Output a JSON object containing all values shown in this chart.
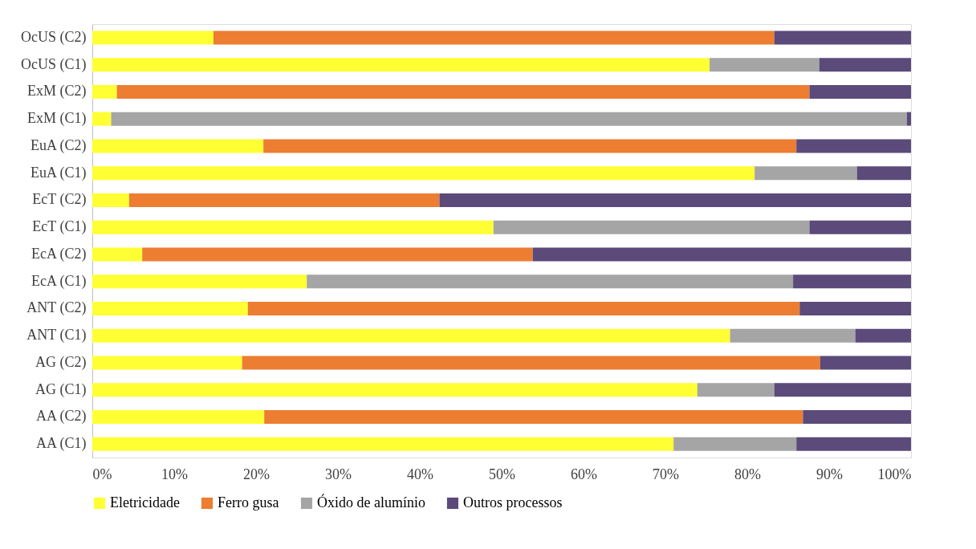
{
  "chart_data": {
    "type": "bar",
    "orientation": "horizontal",
    "stacked": true,
    "categories": [
      "OcUS (C2)",
      "OcUS (C1)",
      "ExM (C2)",
      "ExM (C1)",
      "EuA (C2)",
      "EuA (C1)",
      "EcT (C2)",
      "EcT (C1)",
      "EcA (C2)",
      "EcA (C1)",
      "ANT (C2)",
      "ANT (C1)",
      "AG (C2)",
      "AG (C1)",
      "AA (C2)",
      "AA (C1)"
    ],
    "series": [
      {
        "name": "Eletricidade",
        "color": "#ffff33",
        "values": [
          14.8,
          75.4,
          3.0,
          2.3,
          20.9,
          80.9,
          4.5,
          49.0,
          6.1,
          26.2,
          19.0,
          77.9,
          18.3,
          73.9,
          21.0,
          71.0
        ]
      },
      {
        "name": "Ferro gusa",
        "color": "#ed7d31",
        "values": [
          68.5,
          null,
          84.6,
          null,
          65.1,
          null,
          37.9,
          null,
          47.7,
          null,
          67.4,
          null,
          70.6,
          null,
          65.8,
          null
        ]
      },
      {
        "name": "Óxido de alumínio",
        "color": "#a5a5a5",
        "values": [
          null,
          13.4,
          null,
          97.2,
          null,
          12.5,
          null,
          38.6,
          null,
          59.4,
          null,
          15.3,
          null,
          9.4,
          null,
          15.0
        ]
      },
      {
        "name": "Outros processos",
        "color": "#5b4a7a",
        "values": [
          16.7,
          11.2,
          12.4,
          0.5,
          14.0,
          6.6,
          57.6,
          12.4,
          46.2,
          14.4,
          13.6,
          6.8,
          11.1,
          16.7,
          13.2,
          14.0
        ]
      }
    ],
    "xlim": [
      0,
      100
    ],
    "xticks": [
      {
        "value": 0,
        "label": "0%"
      },
      {
        "value": 10,
        "label": "10%"
      },
      {
        "value": 20,
        "label": "20%"
      },
      {
        "value": 30,
        "label": "30%"
      },
      {
        "value": 40,
        "label": "40%"
      },
      {
        "value": 50,
        "label": "50%"
      },
      {
        "value": 60,
        "label": "60%"
      },
      {
        "value": 70,
        "label": "70%"
      },
      {
        "value": 80,
        "label": "80%"
      },
      {
        "value": 90,
        "label": "90%"
      },
      {
        "value": 100,
        "label": "100%"
      }
    ],
    "grid": false,
    "legend": "bottom"
  }
}
